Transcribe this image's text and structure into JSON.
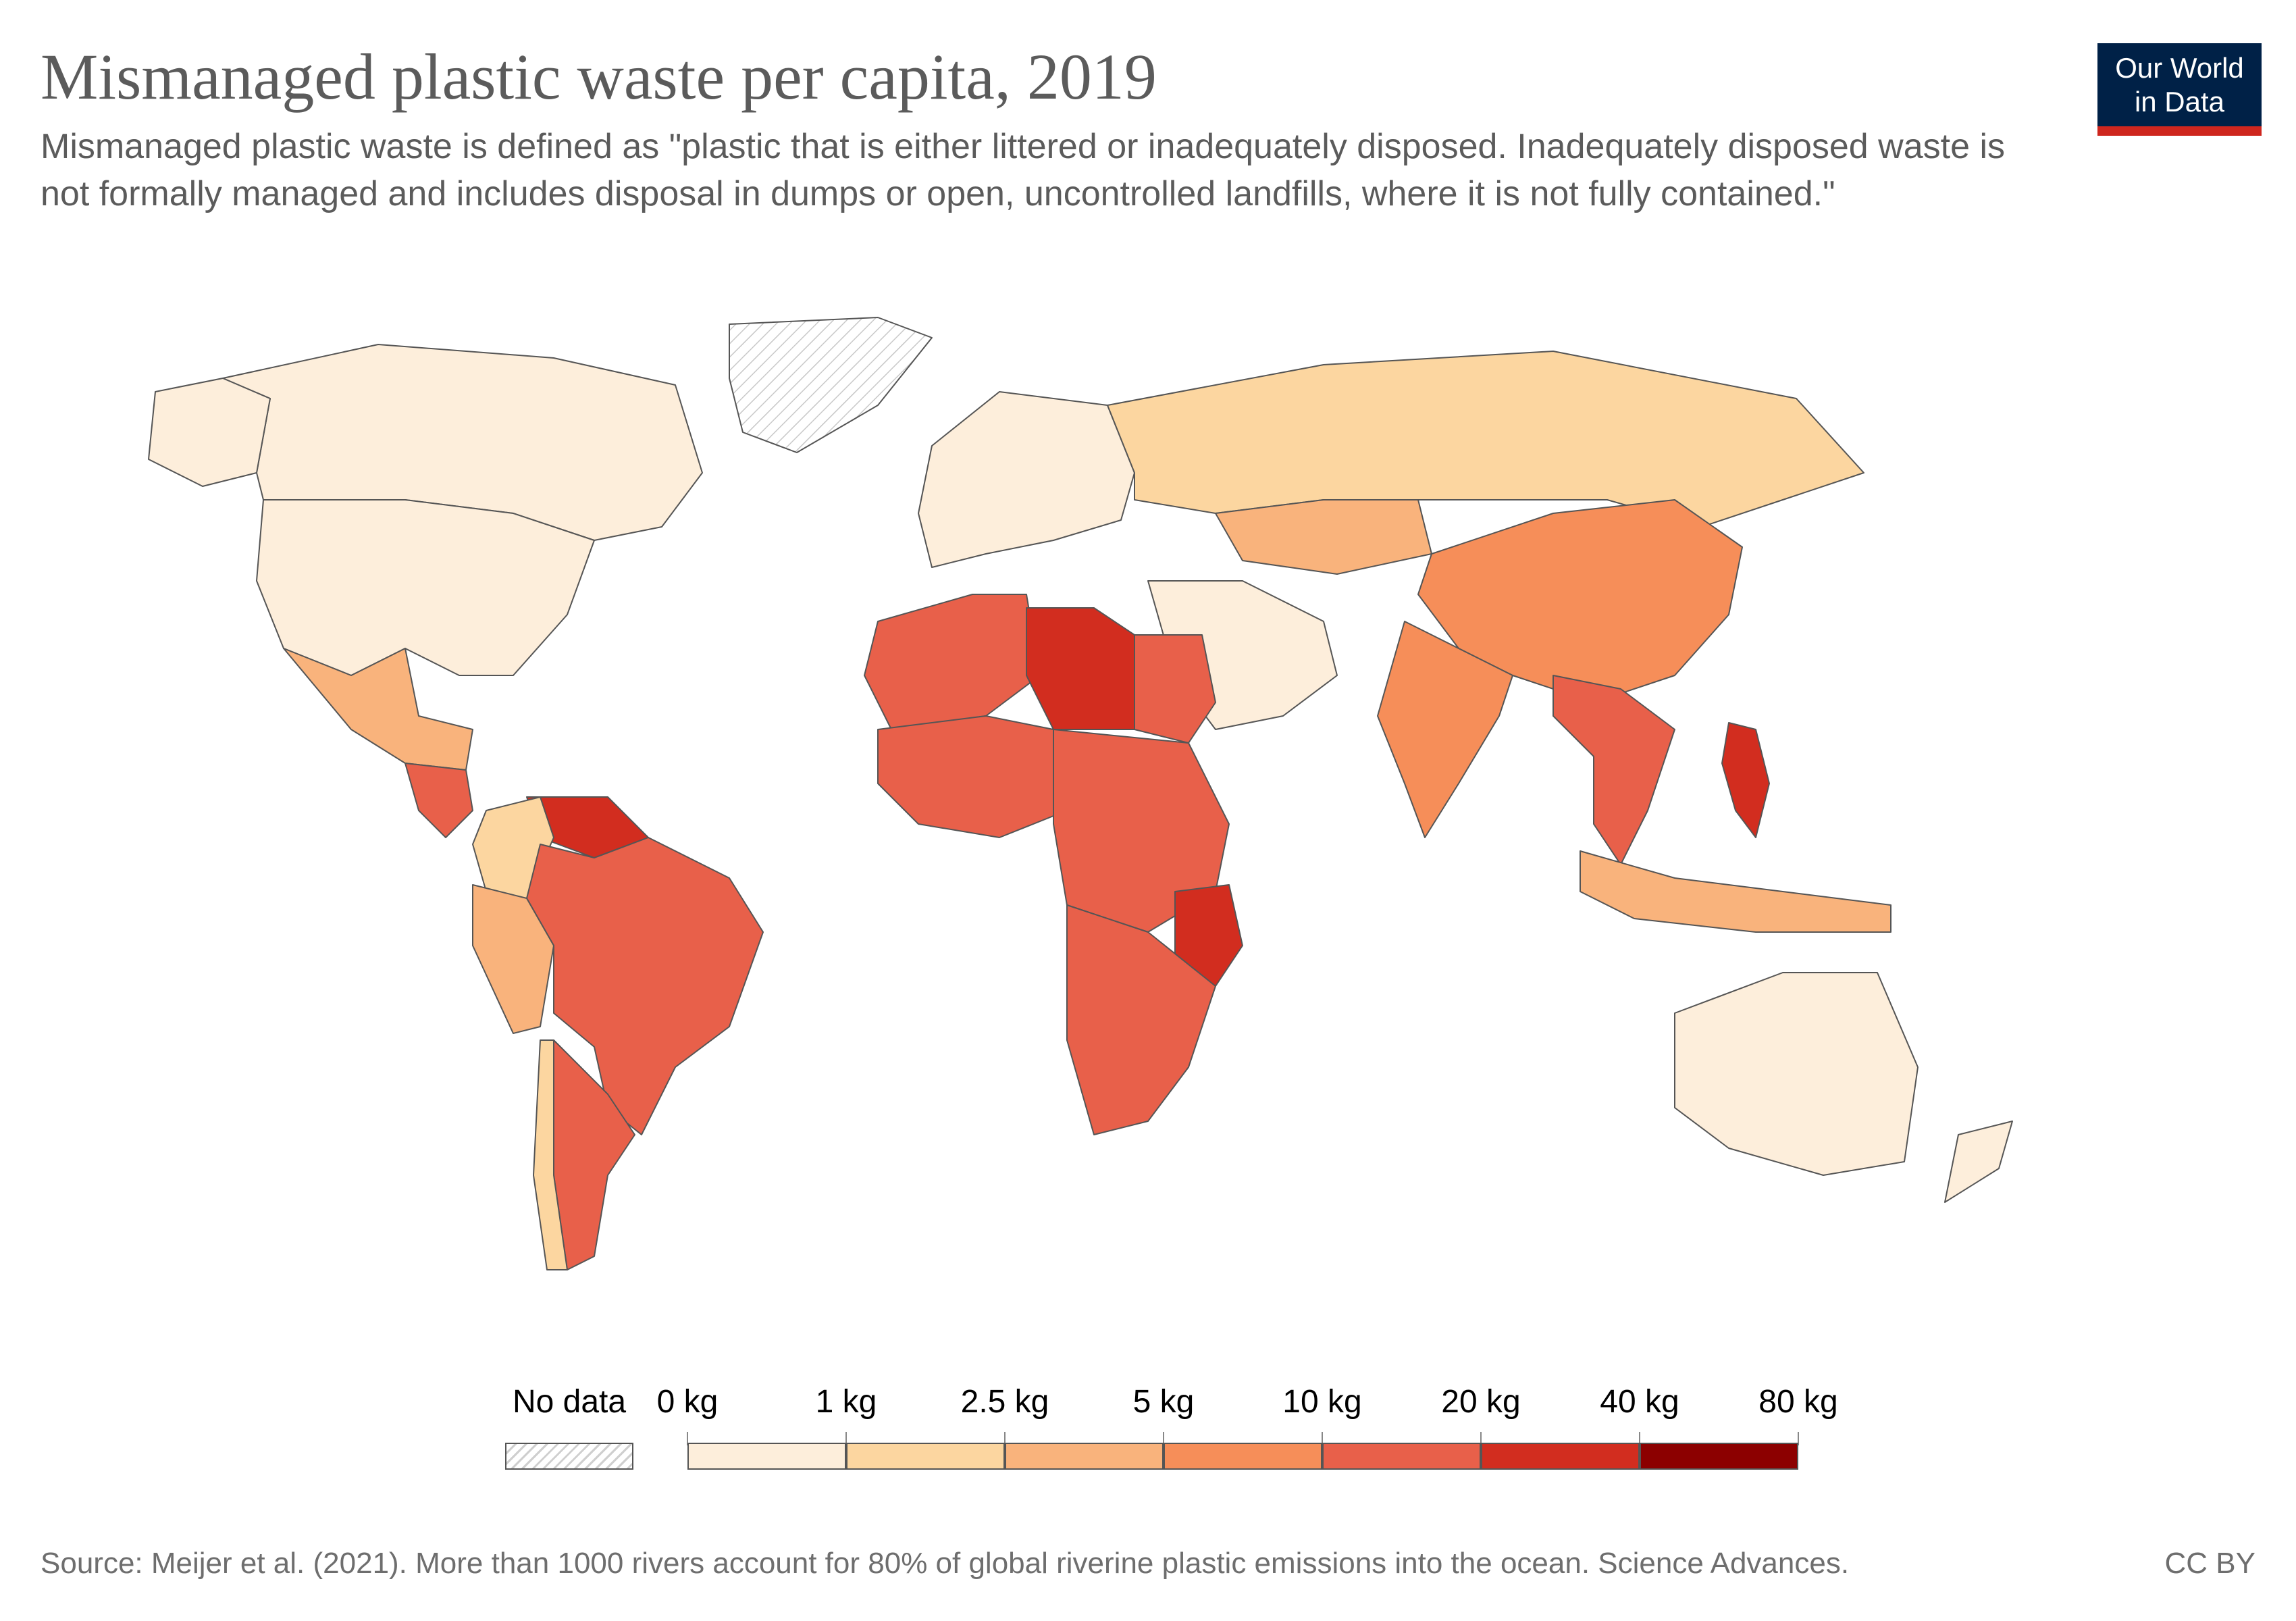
{
  "header": {
    "title": "Mismanaged plastic waste per capita, 2019",
    "subtitle": "Mismanaged plastic waste is defined as \"plastic that is either littered or inadequately disposed. Inadequately disposed waste is not formally managed and includes disposal in dumps or open, uncontrolled landfills, where it is not fully contained.\""
  },
  "logo": {
    "line1": "Our World",
    "line2": "in Data",
    "bg": "#002147",
    "accent": "#ce261e"
  },
  "legend": {
    "no_data_label": "No data",
    "bins": [
      "0 kg",
      "1 kg",
      "2.5 kg",
      "5 kg",
      "10 kg",
      "20 kg",
      "40 kg",
      "80 kg"
    ],
    "colors": [
      "#fdeedb",
      "#fcd6a0",
      "#f9b37c",
      "#f68e59",
      "#e8604a",
      "#d22d1f",
      "#8c0000"
    ]
  },
  "map_data": {
    "type": "choropleth",
    "year": 2019,
    "unit": "kg",
    "regions": [
      {
        "name": "canada",
        "bin": 0
      },
      {
        "name": "usa",
        "bin": 0
      },
      {
        "name": "alaska",
        "bin": 0
      },
      {
        "name": "mexico",
        "bin": 2
      },
      {
        "name": "central-america",
        "bin": 4
      },
      {
        "name": "venezuela",
        "bin": 5
      },
      {
        "name": "colombia",
        "bin": 1
      },
      {
        "name": "brazil",
        "bin": 4
      },
      {
        "name": "peru",
        "bin": 2
      },
      {
        "name": "argentina",
        "bin": 4
      },
      {
        "name": "chile",
        "bin": 1
      },
      {
        "name": "europe",
        "bin": 0
      },
      {
        "name": "russia",
        "bin": 1
      },
      {
        "name": "kazakhstan",
        "bin": 2
      },
      {
        "name": "china",
        "bin": 3
      },
      {
        "name": "india",
        "bin": 3
      },
      {
        "name": "middle-east",
        "bin": 0
      },
      {
        "name": "north-africa",
        "bin": 4
      },
      {
        "name": "libya",
        "bin": 5
      },
      {
        "name": "egypt",
        "bin": 4
      },
      {
        "name": "west-africa",
        "bin": 4
      },
      {
        "name": "central-africa",
        "bin": 4
      },
      {
        "name": "tanzania",
        "bin": 5
      },
      {
        "name": "southern-africa",
        "bin": 4
      },
      {
        "name": "southeast-asia",
        "bin": 4
      },
      {
        "name": "philippines",
        "bin": 5
      },
      {
        "name": "indonesia",
        "bin": 2
      },
      {
        "name": "australia",
        "bin": 0
      },
      {
        "name": "new-zealand",
        "bin": 0
      },
      {
        "name": "greenland",
        "bin": -1
      }
    ]
  },
  "footer": {
    "source": "Source: Meijer et al. (2021). More than 1000 rivers account for 80% of global riverine plastic emissions into the ocean. Science Advances.",
    "license": "CC BY"
  }
}
